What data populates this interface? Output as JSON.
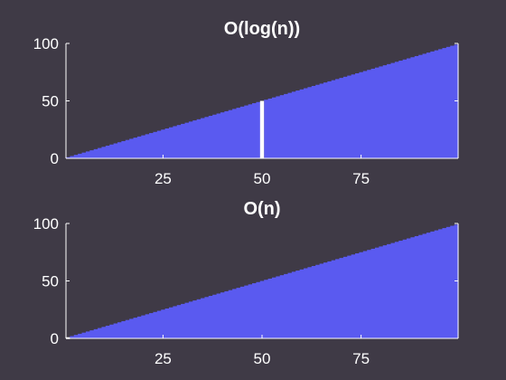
{
  "figure": {
    "background": "#3f3a46"
  },
  "chart_data": [
    {
      "type": "bar",
      "title": "O(log(n))",
      "xlabel": "",
      "ylabel": "",
      "xlim": [
        0.5,
        99.5
      ],
      "ylim": [
        0,
        100
      ],
      "xticks": [
        25,
        50,
        75
      ],
      "yticks": [
        0,
        50,
        100
      ],
      "x_range": [
        1,
        99
      ],
      "values_rule": "value equals index n for n = 1..99",
      "bar_color": "#5a5af0",
      "highlight": {
        "x": 50,
        "value": 50,
        "color": "#ffffff"
      },
      "grid": false,
      "legend": "none"
    },
    {
      "type": "bar",
      "title": "O(n)",
      "xlabel": "",
      "ylabel": "",
      "xlim": [
        0.5,
        99.5
      ],
      "ylim": [
        0,
        100
      ],
      "xticks": [
        25,
        50,
        75
      ],
      "yticks": [
        0,
        50,
        100
      ],
      "x_range": [
        1,
        99
      ],
      "values_rule": "value equals index n for n = 1..99",
      "bar_color": "#5a5af0",
      "highlight": {
        "x": 1,
        "value": 1,
        "color": "#ffffff"
      },
      "grid": false,
      "legend": "none"
    }
  ]
}
